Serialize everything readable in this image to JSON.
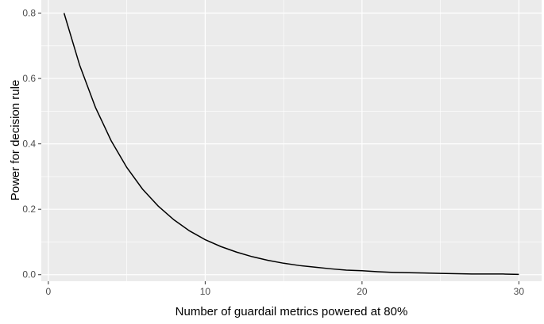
{
  "chart_data": {
    "type": "line",
    "title": "",
    "xlabel": "Number of guardail metrics powered at 80%",
    "ylabel": "Power for decision rule",
    "xlim": [
      -0.45,
      31.45
    ],
    "ylim": [
      -0.02,
      0.84
    ],
    "x_ticks": [
      0,
      10,
      20,
      30
    ],
    "x_tick_labels": [
      "0",
      "10",
      "20",
      "30"
    ],
    "y_ticks": [
      0.0,
      0.2,
      0.4,
      0.6,
      0.8
    ],
    "y_tick_labels": [
      "0.0",
      "0.2",
      "0.4",
      "0.6",
      "0.8"
    ],
    "grid": true,
    "background": "#ebebeb",
    "grid_color": "#ffffff",
    "line_color": "#000000",
    "series": [
      {
        "x": [
          1,
          2,
          3,
          4,
          5,
          6,
          7,
          8,
          9,
          10,
          11,
          12,
          13,
          14,
          15,
          16,
          17,
          18,
          19,
          20,
          21,
          22,
          23,
          24,
          25,
          26,
          27,
          28,
          29,
          30
        ],
        "y": [
          0.8,
          0.64,
          0.512,
          0.41,
          0.328,
          0.262,
          0.21,
          0.168,
          0.134,
          0.107,
          0.086,
          0.069,
          0.055,
          0.044,
          0.035,
          0.028,
          0.023,
          0.018,
          0.014,
          0.012,
          0.009,
          0.007,
          0.006,
          0.005,
          0.004,
          0.003,
          0.002,
          0.002,
          0.002,
          0.001
        ]
      }
    ]
  }
}
